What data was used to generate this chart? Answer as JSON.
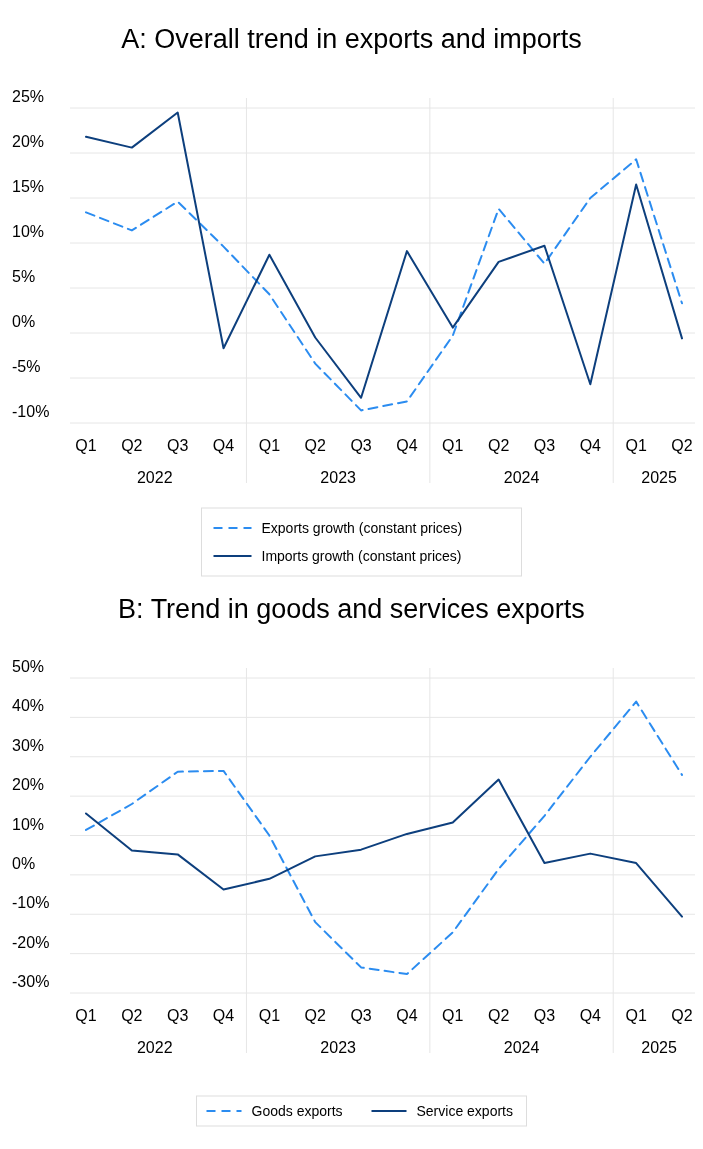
{
  "chart_data": [
    {
      "type": "line",
      "title": "A: Overall trend in exports and imports",
      "categories": [
        "Q1",
        "Q2",
        "Q3",
        "Q4",
        "Q1",
        "Q2",
        "Q3",
        "Q4",
        "Q1",
        "Q2",
        "Q3",
        "Q4",
        "Q1",
        "Q2"
      ],
      "annotations": [
        "2022",
        "2023",
        "2024",
        "2025"
      ],
      "series": [
        {
          "name": "Exports growth (constant prices)",
          "color": "#2b8cf0",
          "line_style": "dashed",
          "values": [
            13.4,
            11.4,
            14.6,
            9.6,
            4.3,
            -3.4,
            -8.6,
            -7.6,
            -0.3,
            13.8,
            7.7,
            15,
            19.3,
            3.3
          ]
        },
        {
          "name": "Imports growth (constant prices)",
          "color": "#0d3f7d",
          "line_style": "solid",
          "values": [
            21.8,
            20.6,
            24.5,
            -1.7,
            8.7,
            -0.5,
            -7.2,
            9.1,
            0.6,
            7.9,
            9.7,
            -5.7,
            16.5,
            -0.6
          ]
        }
      ],
      "ylim": [
        -10,
        25
      ],
      "yticks": [
        {
          "value": -10,
          "label": "-10%"
        },
        {
          "value": -5,
          "label": "-5%"
        },
        {
          "value": 0,
          "label": "0%"
        },
        {
          "value": 5,
          "label": "5%"
        },
        {
          "value": 10,
          "label": "10%"
        },
        {
          "value": 15,
          "label": "15%"
        },
        {
          "value": 20,
          "label": "20%"
        },
        {
          "value": 25,
          "label": "25%"
        }
      ],
      "grid": "y",
      "legend": "bottom",
      "marker": "none"
    },
    {
      "type": "line",
      "title": "B: Trend in goods and services exports",
      "categories": [
        "Q1",
        "Q2",
        "Q3",
        "Q4",
        "Q1",
        "Q2",
        "Q3",
        "Q4",
        "Q1",
        "Q2",
        "Q3",
        "Q4",
        "Q1",
        "Q2"
      ],
      "annotations": [
        "2022",
        "2023",
        "2024",
        "2025"
      ],
      "series": [
        {
          "name": "Goods exports",
          "color": "#2b8cf0",
          "line_style": "dashed",
          "values": [
            11.4,
            18,
            26.2,
            26.4,
            10,
            -12,
            -23.5,
            -25.2,
            -14.6,
            1.5,
            15,
            30,
            44,
            25.4
          ]
        },
        {
          "name": "Service exports",
          "color": "#0d3f7d",
          "line_style": "solid",
          "values": [
            15.6,
            6.2,
            5.2,
            -3.7,
            -1,
            4.7,
            6.4,
            10.4,
            13.3,
            24.2,
            3,
            5.4,
            3,
            -10.6
          ]
        }
      ],
      "ylim": [
        -30,
        50
      ],
      "yticks": [
        {
          "value": -30,
          "label": "-30%"
        },
        {
          "value": -20,
          "label": "-20%"
        },
        {
          "value": -10,
          "label": "-10%"
        },
        {
          "value": 0,
          "label": "0%"
        },
        {
          "value": 10,
          "label": "10%"
        },
        {
          "value": 20,
          "label": "20%"
        },
        {
          "value": 30,
          "label": "30%"
        },
        {
          "value": 40,
          "label": "40%"
        },
        {
          "value": 50,
          "label": "50%"
        }
      ],
      "grid": "y",
      "legend": "bottom",
      "marker": "none"
    }
  ]
}
